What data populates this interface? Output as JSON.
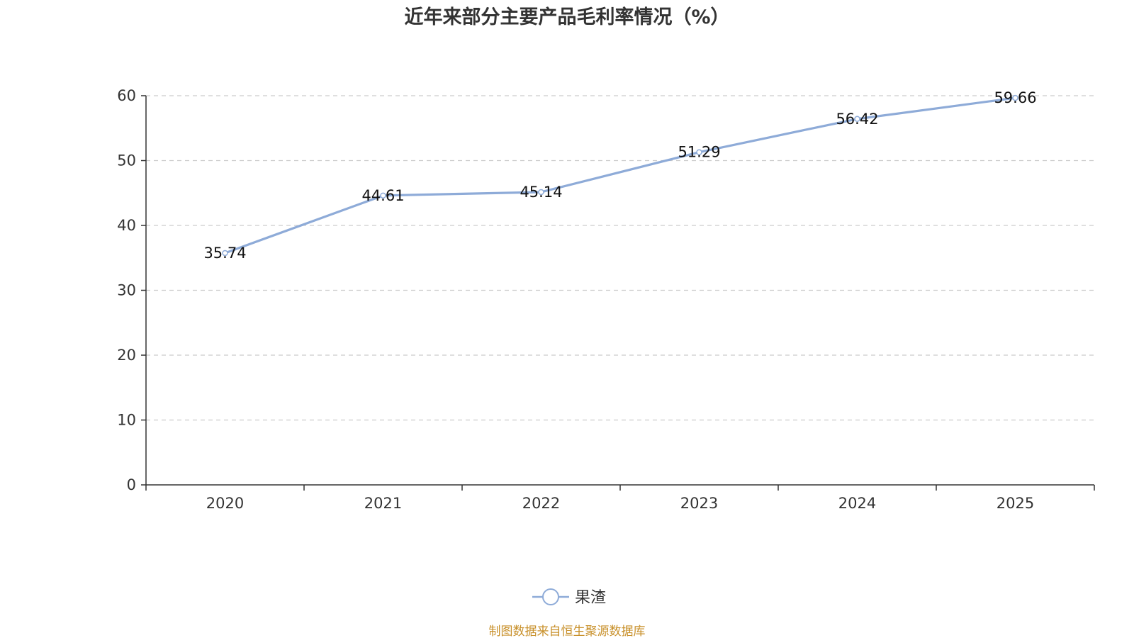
{
  "chart_data": {
    "type": "line",
    "title": "近年来部分主要产品毛利率情况（%）",
    "categories": [
      "2020",
      "2021",
      "2022",
      "2023",
      "2024",
      "2025"
    ],
    "series": [
      {
        "name": "果渣",
        "values": [
          35.74,
          44.61,
          45.14,
          51.29,
          56.42,
          59.66
        ],
        "color": "#8eabd8"
      }
    ],
    "ylim": [
      0,
      60
    ],
    "yticks": [
      0,
      10,
      20,
      30,
      40,
      50,
      60
    ],
    "xlabel": "",
    "ylabel": "",
    "grid": "horizontal dashed",
    "legend_position": "bottom-center",
    "source": "制图数据来自恒生聚源数据库"
  }
}
